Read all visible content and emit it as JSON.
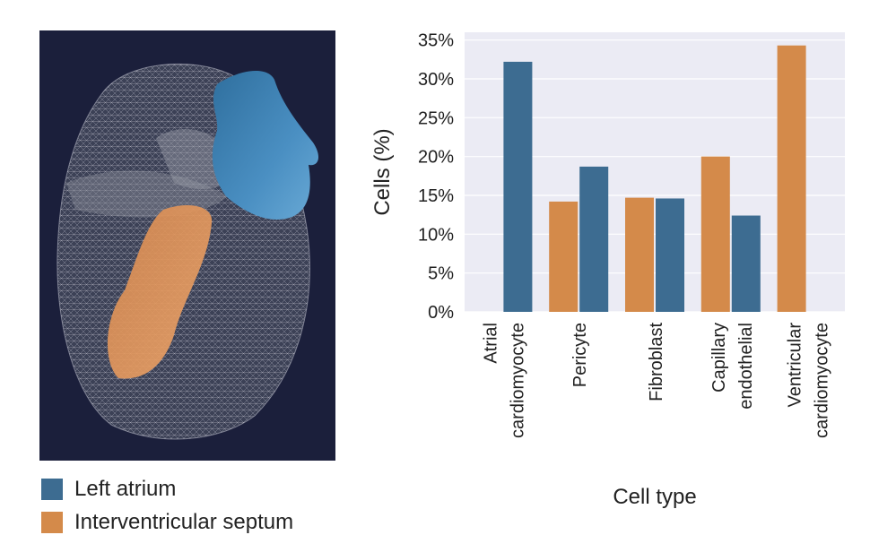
{
  "legend": {
    "items": [
      {
        "label": "Left atrium",
        "color": "#3d6c91"
      },
      {
        "label": "Interventricular septum",
        "color": "#d48a4a"
      }
    ]
  },
  "chart_data": {
    "type": "bar",
    "xlabel": "Cell type",
    "ylabel": "Cells (%)",
    "ylim": [
      0,
      36
    ],
    "yticks": [
      "0%",
      "5%",
      "10%",
      "15%",
      "20%",
      "25%",
      "30%",
      "35%"
    ],
    "categories": [
      [
        "Atrial",
        "cardiomyocyte"
      ],
      [
        "Pericyte"
      ],
      [
        "Fibroblast"
      ],
      [
        "Capillary",
        "endothelial"
      ],
      [
        "Ventricular",
        "cardiomyocyte"
      ]
    ],
    "series": [
      {
        "name": "Interventricular septum",
        "color": "#d48a4a",
        "values": [
          0,
          14.2,
          14.7,
          20.0,
          34.3
        ]
      },
      {
        "name": "Left atrium",
        "color": "#3d6c91",
        "values": [
          32.2,
          18.7,
          14.6,
          12.4,
          0
        ]
      }
    ],
    "grid": true,
    "background": "#ebebf4"
  }
}
